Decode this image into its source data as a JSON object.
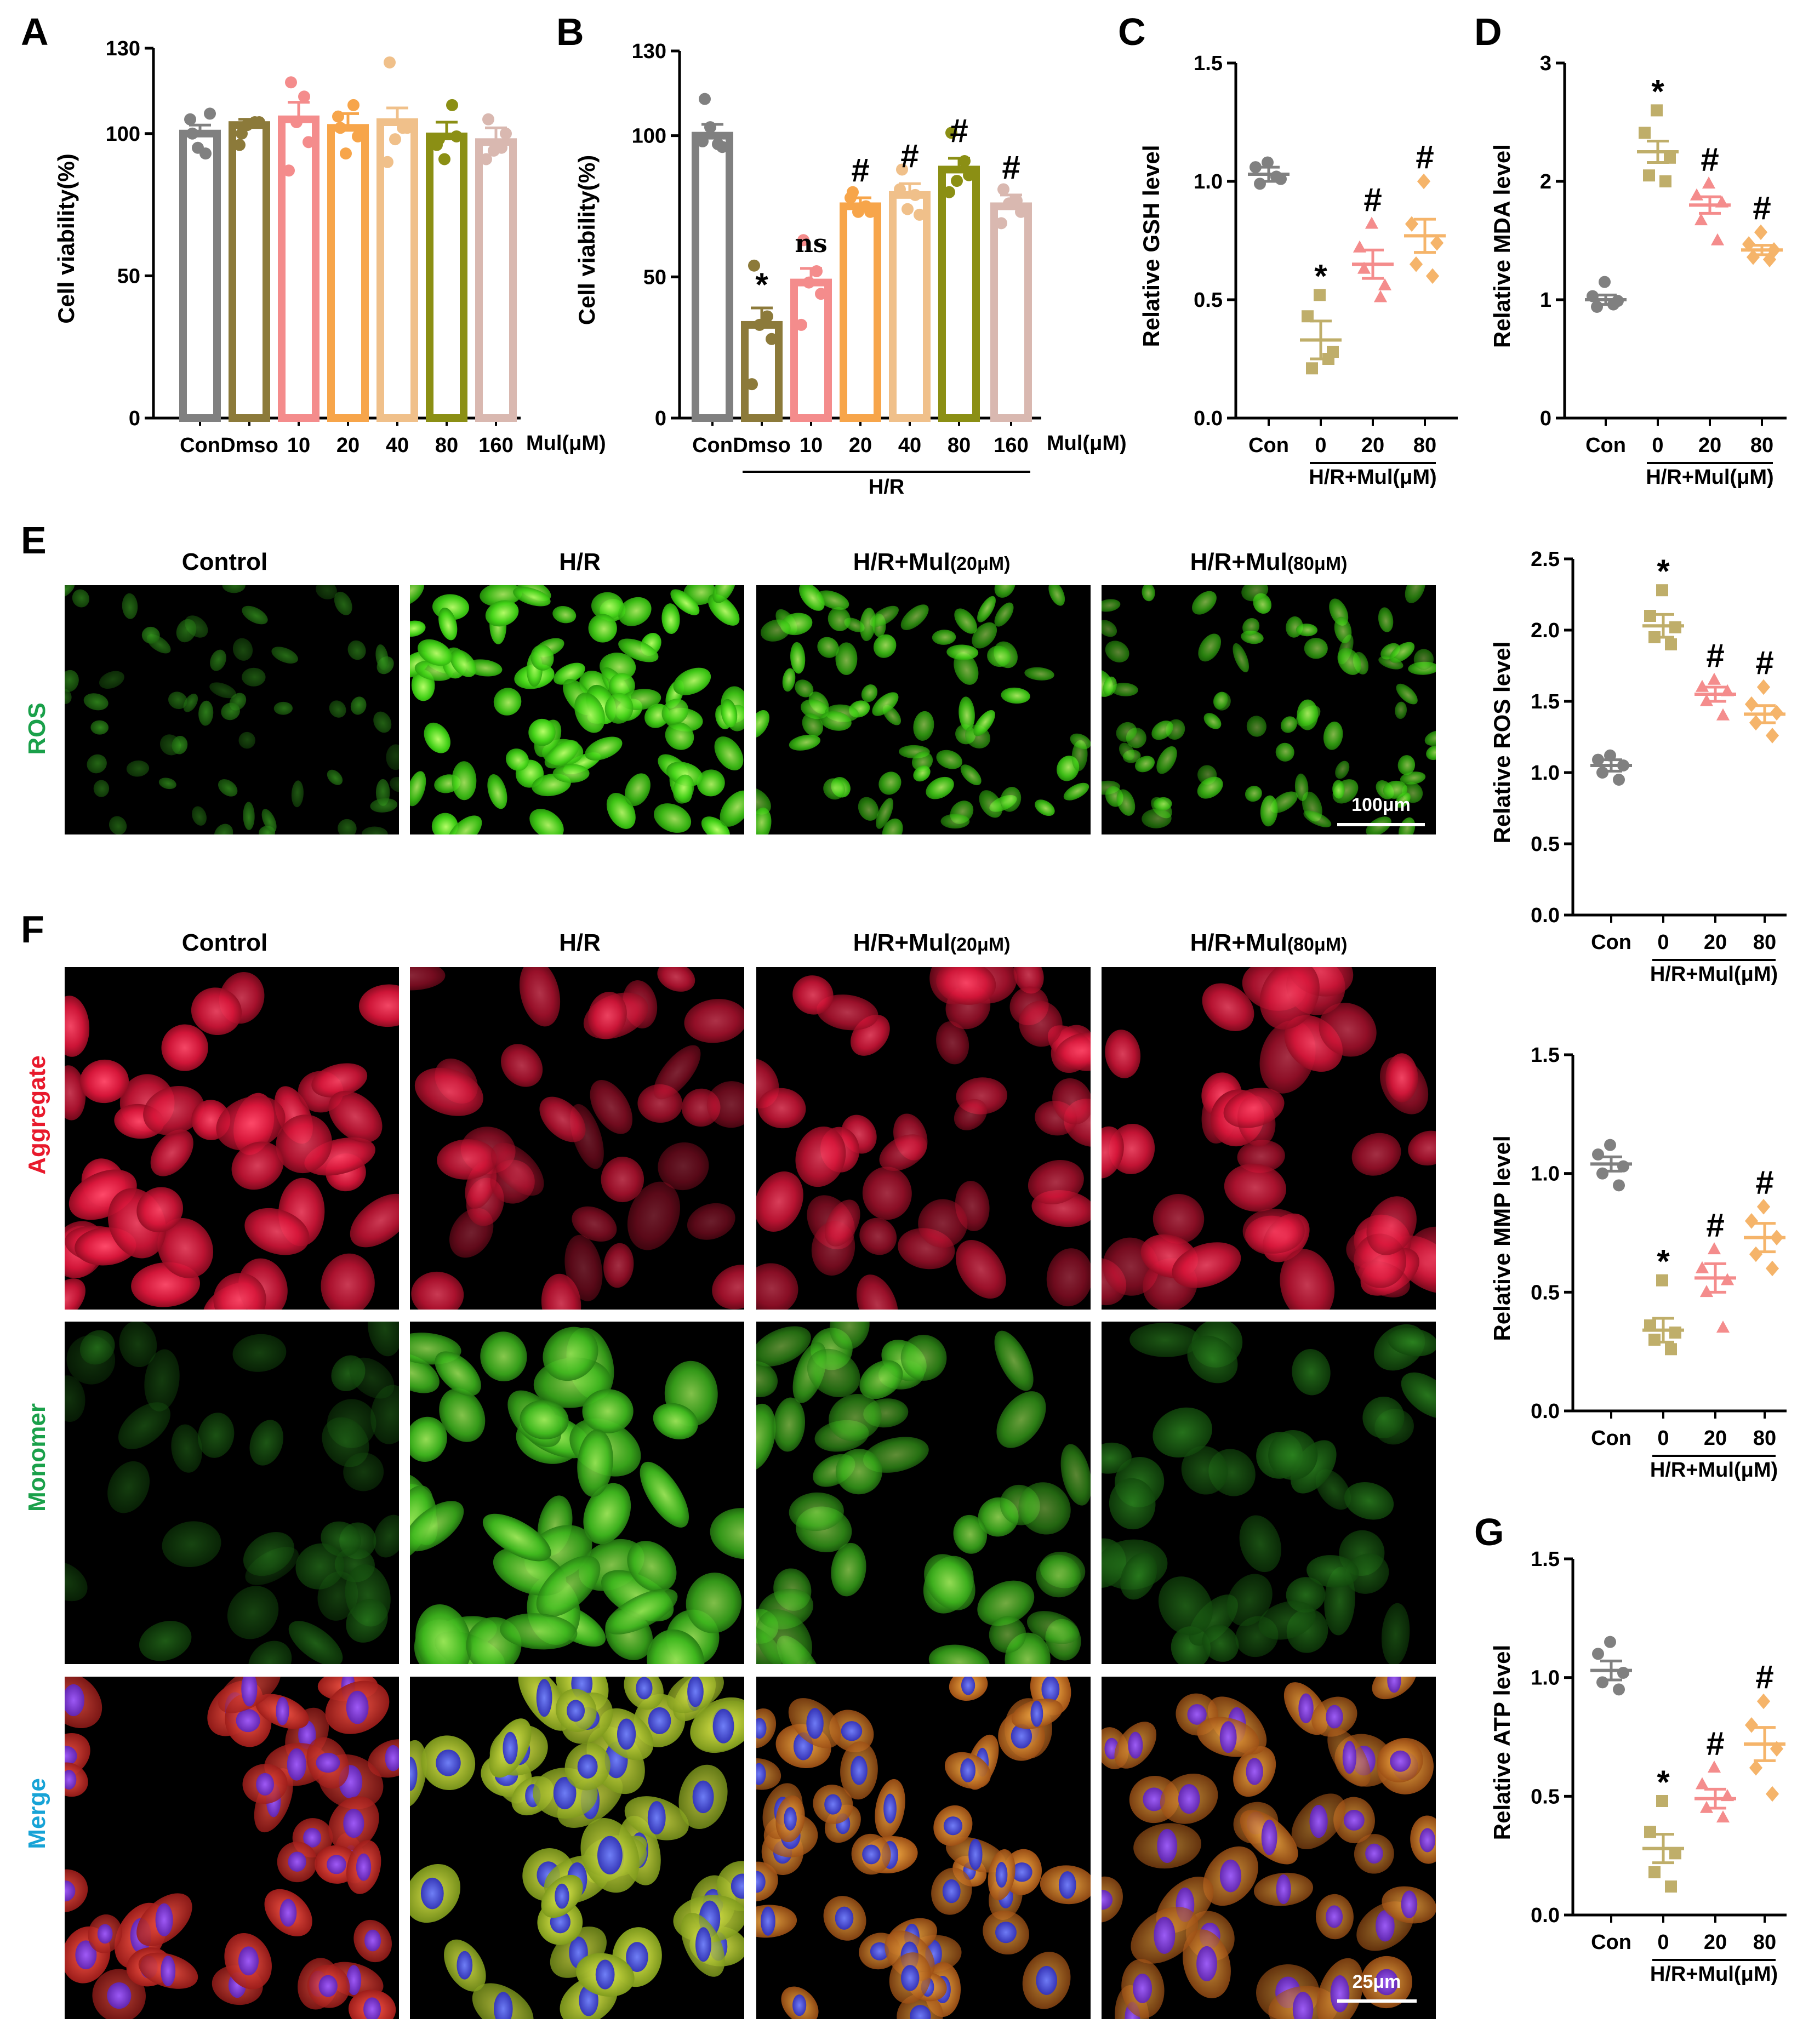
{
  "colors": {
    "con": "#808080",
    "dmso": "#8c7a3a",
    "c10": "#f48c8c",
    "c20": "#f7a54a",
    "c40": "#f0c08a",
    "c80": "#8b8f14",
    "c160": "#d9b8b0",
    "hr0": "#bfae6a",
    "hr20": "#f48c8c",
    "hr80": "#f5b46a",
    "aggregate_label": "#e8192c",
    "monomer_label": "#1aa04a",
    "merge_label": "#17a3d6",
    "ros_label": "#1aa04a"
  },
  "chart_data": [
    {
      "id": "A",
      "panel": "A",
      "type": "bar",
      "ylabel": "Cell viability(%)",
      "yticks": [
        0,
        50,
        100,
        130
      ],
      "ylim": [
        0,
        130
      ],
      "categories": [
        "Con",
        "Dmso",
        "10",
        "20",
        "40",
        "80",
        "160"
      ],
      "unit_label": "Mul(μM)",
      "values": [
        100,
        103,
        105,
        102,
        104,
        99,
        97
      ],
      "sem": [
        3,
        2,
        6,
        5,
        5,
        5,
        5
      ],
      "points": [
        [
          100,
          93,
          95,
          107,
          105
        ],
        [
          100,
          104,
          103,
          104,
          96
        ],
        [
          118,
          113,
          104,
          97,
          87
        ],
        [
          102,
          110,
          93,
          99,
          106
        ],
        [
          125,
          102,
          98,
          102,
          90
        ],
        [
          98,
          110,
          91,
          99,
          96
        ],
        [
          105,
          95,
          94,
          100,
          91
        ]
      ],
      "group_label": ""
    },
    {
      "id": "B",
      "panel": "B",
      "type": "bar",
      "ylabel": "Cell viability(%)",
      "yticks": [
        0,
        50,
        100,
        130
      ],
      "ylim": [
        0,
        130
      ],
      "categories": [
        "Con",
        "Dmso",
        "10",
        "20",
        "40",
        "80",
        "160"
      ],
      "unit_label": "Mul(μM)",
      "values": [
        100,
        33,
        48,
        75,
        79,
        88,
        75
      ],
      "sem": [
        4,
        6,
        5,
        3,
        4,
        4,
        4
      ],
      "points": [
        [
          113,
          97,
          103,
          96,
          98
        ],
        [
          54,
          36,
          33,
          28,
          12
        ],
        [
          63,
          52,
          48,
          44,
          33
        ],
        [
          80,
          75,
          73,
          73,
          78
        ],
        [
          88,
          79,
          74,
          72,
          81
        ],
        [
          101,
          91,
          84,
          86,
          80
        ],
        [
          81,
          77,
          76,
          73,
          69
        ]
      ],
      "annotations": [
        "",
        "*",
        "ns",
        "#",
        "#",
        "#",
        "#"
      ],
      "group_label": "H/R"
    },
    {
      "id": "C",
      "panel": "C",
      "type": "scatter",
      "ylabel": "Relative GSH level",
      "yticks": [
        0.0,
        0.5,
        1.0,
        1.5
      ],
      "ytick_labels": [
        "0.0",
        "0.5",
        "1.0",
        "1.5"
      ],
      "ylim": [
        0,
        1.5
      ],
      "categories": [
        "Con",
        "0",
        "20",
        "80"
      ],
      "means": [
        1.03,
        0.33,
        0.65,
        0.77
      ],
      "sem": [
        0.03,
        0.08,
        0.06,
        0.07
      ],
      "points": [
        [
          1.08,
          1.06,
          1.01,
          0.99,
          1.02
        ],
        [
          0.52,
          0.43,
          0.28,
          0.21,
          0.25
        ],
        [
          0.82,
          0.72,
          0.56,
          0.63,
          0.51
        ],
        [
          1.0,
          0.82,
          0.74,
          0.65,
          0.6
        ]
      ],
      "annotations": [
        "",
        "*",
        "#",
        "#"
      ],
      "group_label": "H/R+Mul(μM)"
    },
    {
      "id": "D",
      "panel": "D",
      "type": "scatter",
      "ylabel": "Relative MDA level",
      "yticks": [
        0,
        1,
        2,
        3
      ],
      "ytick_labels": [
        "0",
        "1",
        "2",
        "3"
      ],
      "ylim": [
        0,
        3
      ],
      "categories": [
        "Con",
        "0",
        "20",
        "80"
      ],
      "means": [
        1.0,
        2.25,
        1.8,
        1.42
      ],
      "sem": [
        0.04,
        0.09,
        0.07,
        0.04
      ],
      "points": [
        [
          1.15,
          1.03,
          0.99,
          0.94,
          0.96
        ],
        [
          2.6,
          2.41,
          2.2,
          2.05,
          2.0
        ],
        [
          1.98,
          1.88,
          1.82,
          1.67,
          1.5
        ],
        [
          1.57,
          1.47,
          1.42,
          1.36,
          1.34
        ]
      ],
      "annotations": [
        "",
        "*",
        "#",
        "#"
      ],
      "group_label": "H/R+Mul(μM)"
    },
    {
      "id": "ROS",
      "panel": "",
      "type": "scatter",
      "ylabel": "Relative ROS level",
      "yticks": [
        0.0,
        0.5,
        1.0,
        1.5,
        2.0,
        2.5
      ],
      "ytick_labels": [
        "0.0",
        "0.5",
        "1.0",
        "1.5",
        "2.0",
        "2.5"
      ],
      "ylim": [
        0,
        2.5
      ],
      "categories": [
        "Con",
        "0",
        "20",
        "80"
      ],
      "means": [
        1.05,
        2.03,
        1.55,
        1.41
      ],
      "sem": [
        0.04,
        0.08,
        0.05,
        0.06
      ],
      "points": [
        [
          1.12,
          1.09,
          1.05,
          1.0,
          0.95
        ],
        [
          2.28,
          2.1,
          2.02,
          1.95,
          1.9
        ],
        [
          1.65,
          1.6,
          1.57,
          1.5,
          1.4
        ],
        [
          1.6,
          1.48,
          1.42,
          1.35,
          1.26
        ]
      ],
      "annotations": [
        "",
        "*",
        "#",
        "#"
      ],
      "group_label": "H/R+Mul(μM)"
    },
    {
      "id": "MMP",
      "panel": "",
      "type": "scatter",
      "ylabel": "Relative MMP level",
      "yticks": [
        0.0,
        0.5,
        1.0,
        1.5
      ],
      "ytick_labels": [
        "0.0",
        "0.5",
        "1.0",
        "1.5"
      ],
      "ylim": [
        0,
        1.5
      ],
      "categories": [
        "Con",
        "0",
        "20",
        "80"
      ],
      "means": [
        1.04,
        0.34,
        0.56,
        0.73
      ],
      "sem": [
        0.03,
        0.05,
        0.06,
        0.06
      ],
      "points": [
        [
          1.12,
          1.08,
          1.03,
          1.0,
          0.95
        ],
        [
          0.55,
          0.36,
          0.33,
          0.3,
          0.26
        ],
        [
          0.68,
          0.6,
          0.55,
          0.5,
          0.35
        ],
        [
          0.86,
          0.8,
          0.73,
          0.66,
          0.6
        ]
      ],
      "annotations": [
        "",
        "*",
        "#",
        "#"
      ],
      "group_label": "H/R+Mul(μM)"
    },
    {
      "id": "G",
      "panel": "G",
      "type": "scatter",
      "ylabel": "Relative ATP level",
      "yticks": [
        0.0,
        0.5,
        1.0,
        1.5
      ],
      "ytick_labels": [
        "0.0",
        "0.5",
        "1.0",
        "1.5"
      ],
      "ylim": [
        0,
        1.5
      ],
      "categories": [
        "Con",
        "0",
        "20",
        "80"
      ],
      "means": [
        1.03,
        0.28,
        0.49,
        0.72
      ],
      "sem": [
        0.04,
        0.06,
        0.04,
        0.07
      ],
      "points": [
        [
          1.15,
          1.1,
          1.02,
          0.98,
          0.95
        ],
        [
          0.48,
          0.35,
          0.26,
          0.18,
          0.12
        ],
        [
          0.62,
          0.55,
          0.5,
          0.45,
          0.41
        ],
        [
          0.9,
          0.8,
          0.7,
          0.62,
          0.51
        ]
      ],
      "annotations": [
        "",
        "*",
        "#",
        "#"
      ],
      "group_label": "H/R+Mul(μM)"
    }
  ],
  "micrographs": {
    "columns_E": [
      "Control",
      "H/R",
      "H/R+Mul",
      "H/R+Mul"
    ],
    "columns_E_suffix": [
      "",
      "",
      "(20μM)",
      "(80μM)"
    ],
    "columns_F": [
      "Control",
      "H/R",
      "H/R+Mul",
      "H/R+Mul"
    ],
    "columns_F_suffix": [
      "",
      "",
      "(20μM)",
      "(80μM)"
    ],
    "row_E": "ROS",
    "rows_F": [
      "Aggregate",
      "Monomer",
      "Merge"
    ],
    "scale_E": "100μm",
    "scale_F": "25μm",
    "panel_E": "E",
    "panel_F": "F"
  }
}
